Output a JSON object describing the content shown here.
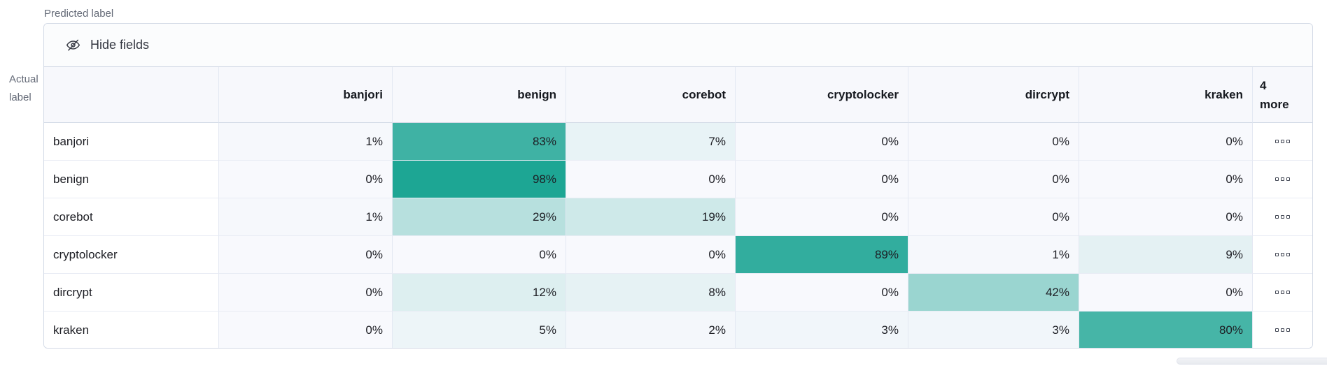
{
  "axes": {
    "predicted_label": "Predicted label",
    "actual_label": [
      "Actual",
      "label"
    ]
  },
  "toolbar": {
    "hide_fields": "Hide fields"
  },
  "chart_data": {
    "type": "heatmap",
    "x_axis_label": "Predicted label",
    "y_axis_label": "Actual label",
    "columns": [
      "banjori",
      "benign",
      "corebot",
      "cryptolocker",
      "dircrypt",
      "kraken"
    ],
    "more_header": {
      "line1": "4",
      "line2": "more"
    },
    "rows": [
      "banjori",
      "benign",
      "corebot",
      "cryptolocker",
      "dircrypt",
      "kraken"
    ],
    "values_percent": [
      [
        1,
        83,
        7,
        0,
        0,
        0
      ],
      [
        0,
        98,
        0,
        0,
        0,
        0
      ],
      [
        1,
        29,
        19,
        0,
        0,
        0
      ],
      [
        0,
        0,
        0,
        89,
        1,
        9
      ],
      [
        0,
        12,
        8,
        0,
        42,
        0
      ],
      [
        0,
        5,
        2,
        3,
        3,
        80
      ]
    ],
    "unit": "%",
    "heat_color": "#19A492",
    "zero_cell_color": "#F8F9FD",
    "row_overflow_icon": "boxes-horizontal-icon"
  }
}
